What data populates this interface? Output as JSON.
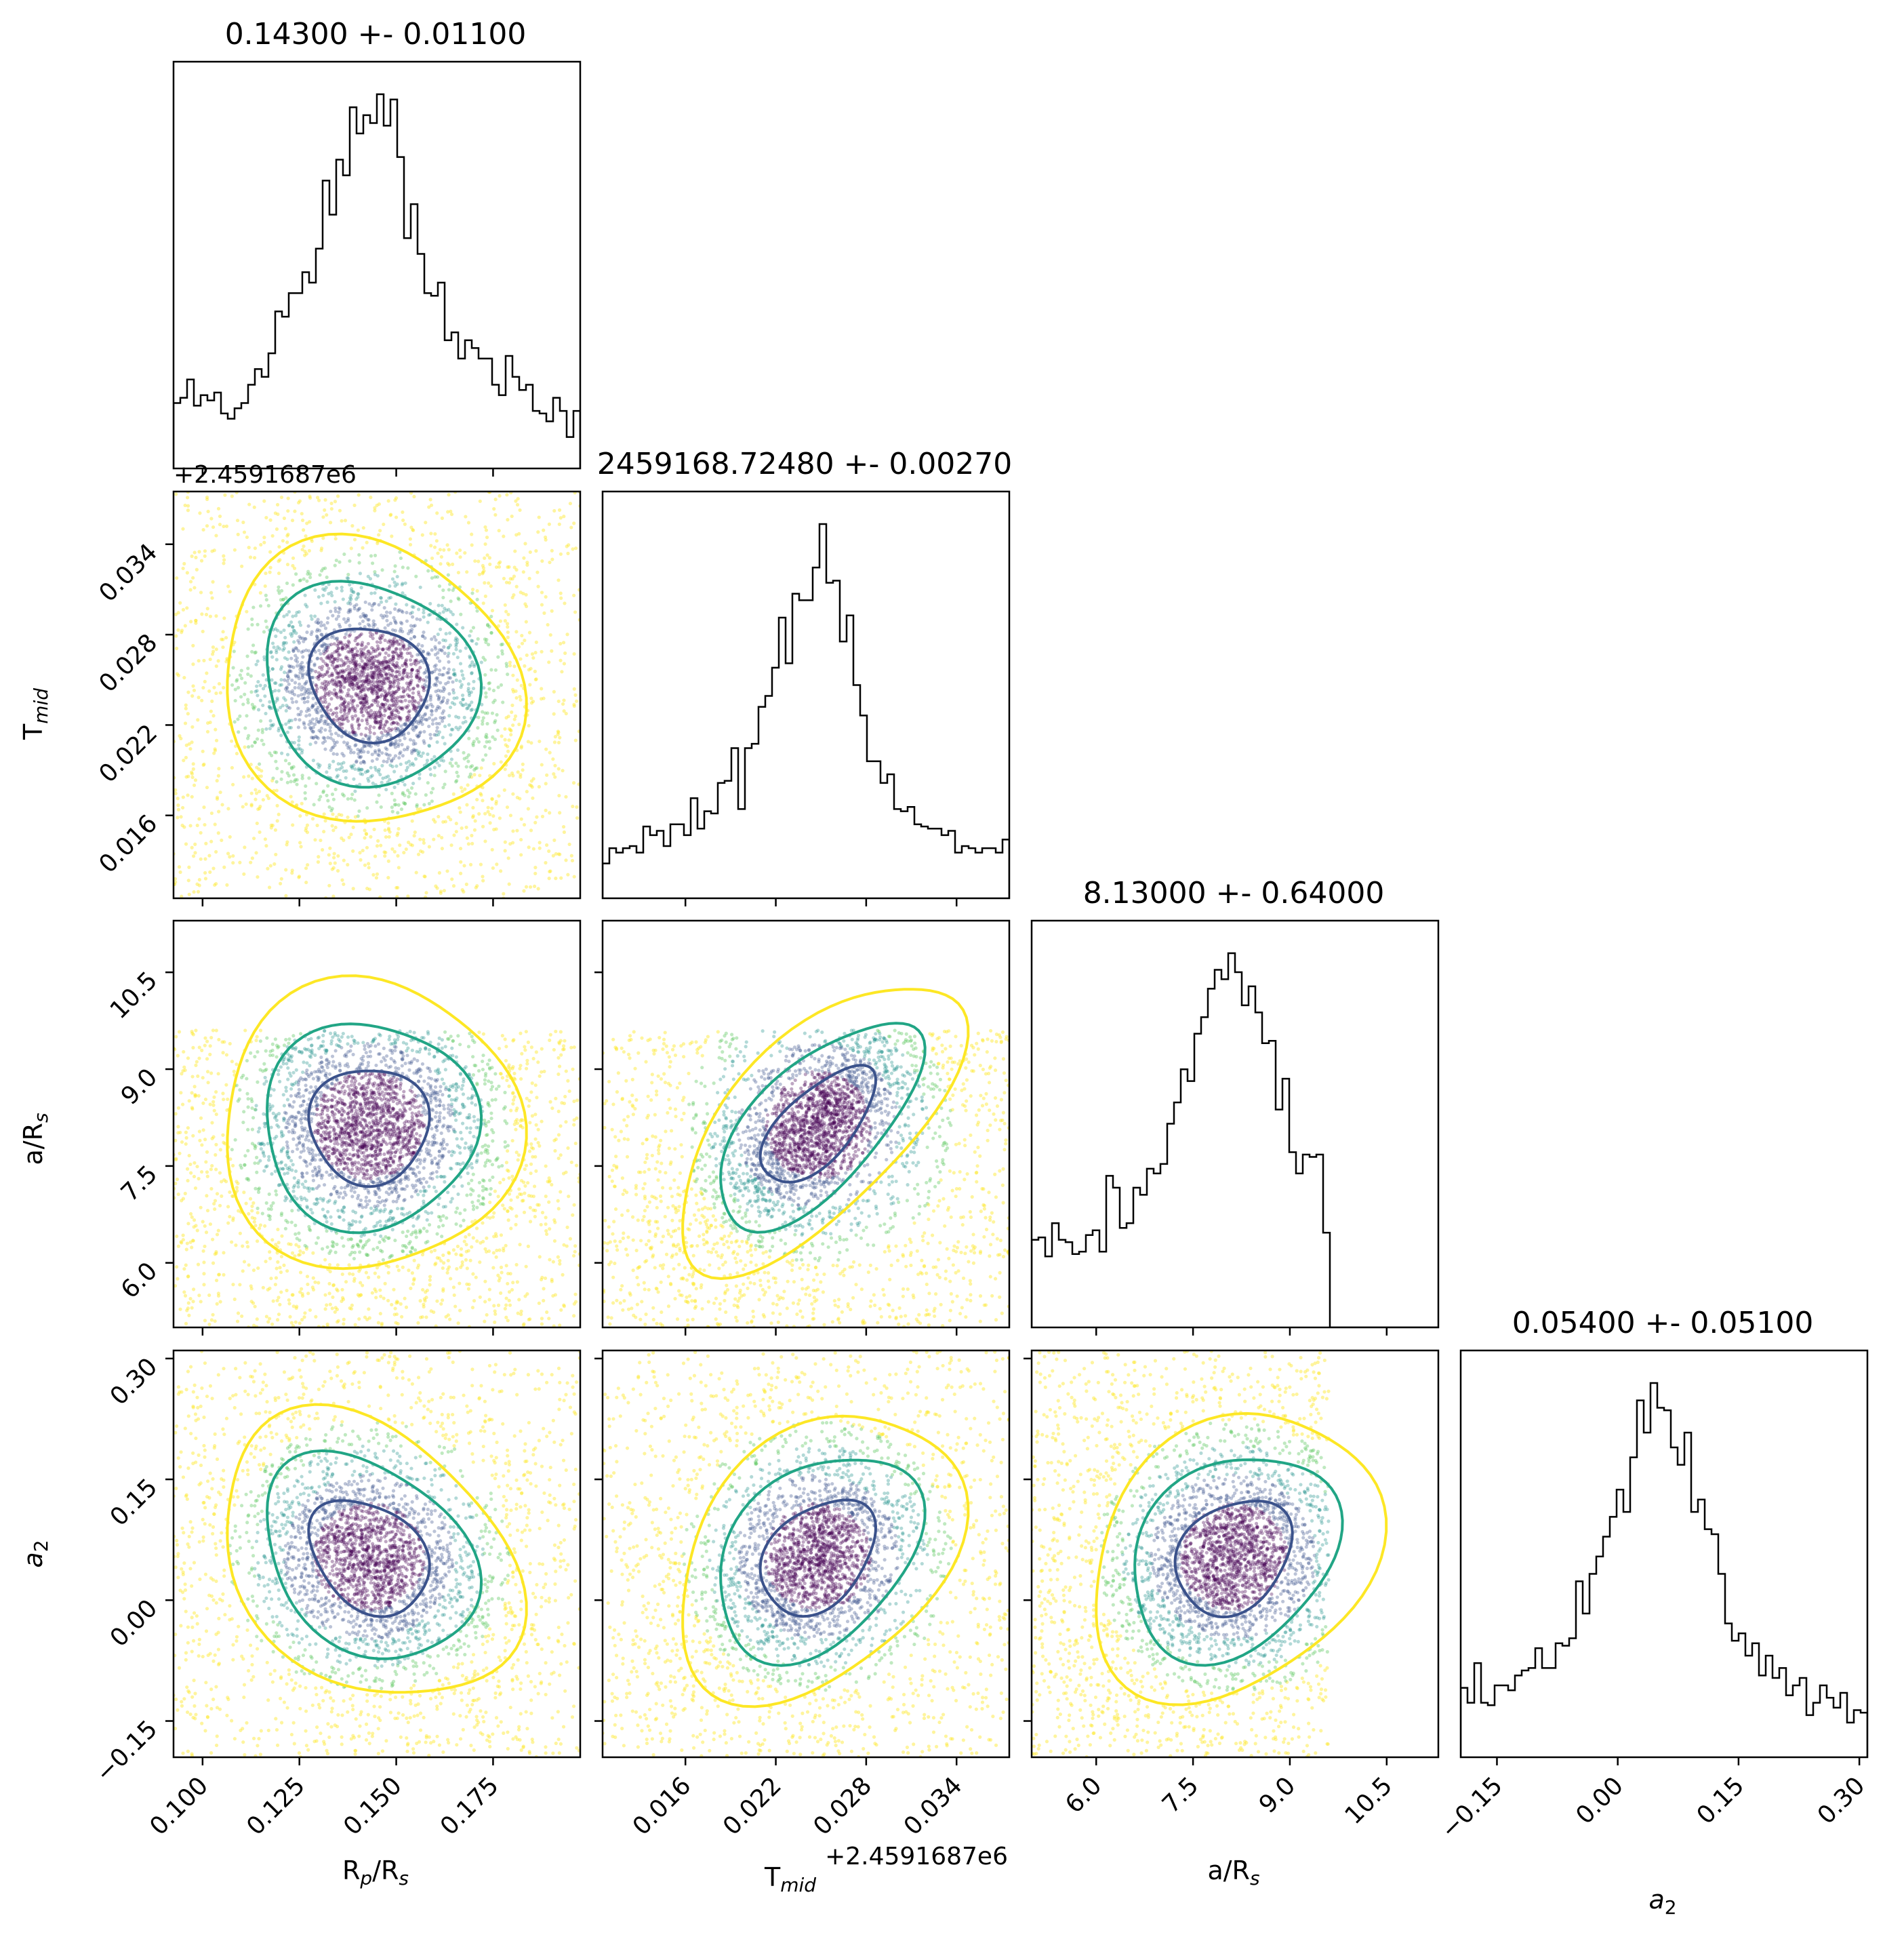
{
  "chart_data": {
    "type": "corner",
    "parameters": [
      {
        "key": "rp",
        "axis_label": "R_p/R_s",
        "range": [
          0.0925,
          0.1975
        ],
        "ticks": [
          0.1,
          0.125,
          0.15,
          0.175
        ],
        "tick_labels": [
          "0.100",
          "0.125",
          "0.150",
          "0.175"
        ],
        "mean": 0.143,
        "sd": 0.011
      },
      {
        "key": "tmid",
        "axis_label": "T_mid",
        "range": [
          0.0105,
          0.0375
        ],
        "ticks": [
          0.016,
          0.022,
          0.028,
          0.034
        ],
        "tick_labels": [
          "0.016",
          "0.022",
          "0.028",
          "0.034"
        ],
        "offset_label": "+2.4591687e6",
        "offset_label_truncated": "+2.4591687e6",
        "mean": 0.0248,
        "sd": 0.0027
      },
      {
        "key": "ars",
        "axis_label": "a/R_s",
        "range": [
          5.0,
          11.3
        ],
        "ticks": [
          6.0,
          7.5,
          9.0,
          10.5
        ],
        "tick_labels": [
          "6.0",
          "7.5",
          "9.0",
          "10.5"
        ],
        "mean": 8.13,
        "sd": 0.64,
        "prior_max": 9.6
      },
      {
        "key": "a2",
        "axis_label": "a_2",
        "range": [
          -0.195,
          0.31
        ],
        "ticks": [
          -0.15,
          0.0,
          0.15,
          0.3
        ],
        "tick_labels": [
          "−0.15",
          "0.00",
          "0.15",
          "0.30"
        ],
        "mean": 0.054,
        "sd": 0.051
      }
    ],
    "titles": [
      "0.14300 +- 0.01100",
      "2459168.72480 +- 0.00270",
      "8.13000 +- 0.64000",
      "0.05400 +- 0.05100"
    ],
    "contour_levels": [
      "1-sigma",
      "2-sigma",
      "3-sigma"
    ],
    "colors": {
      "axes": "#000000",
      "hist": "#000000",
      "contour_inner": "#3b528b",
      "contour_mid": "#21a585",
      "contour_outer": "#fde725",
      "points_dense": "#440154",
      "points_mid": "#3b528b",
      "points_green": "#21918c",
      "points_light": "#5ec962",
      "points_sparse": "#fde725"
    },
    "grid": false,
    "legend": "none"
  },
  "labels": {
    "x_rp": "R",
    "x_rp_sub": "p",
    "x_rp_rest": "/R",
    "x_rp_sub2": "s",
    "x_tmid": "T",
    "x_tmid_sub": "mid",
    "x_ars": "a/R",
    "x_ars_sub": "s",
    "x_a2": "a",
    "x_a2_sub": "2",
    "y_tmid": "T",
    "y_tmid_sub": "mid",
    "y_ars": "a/R",
    "y_ars_sub": "s",
    "y_a2": "a",
    "y_a2_sub": "2",
    "top_offset": "+2.4591687e6",
    "bottom_offset": "+2.4591687e6"
  }
}
